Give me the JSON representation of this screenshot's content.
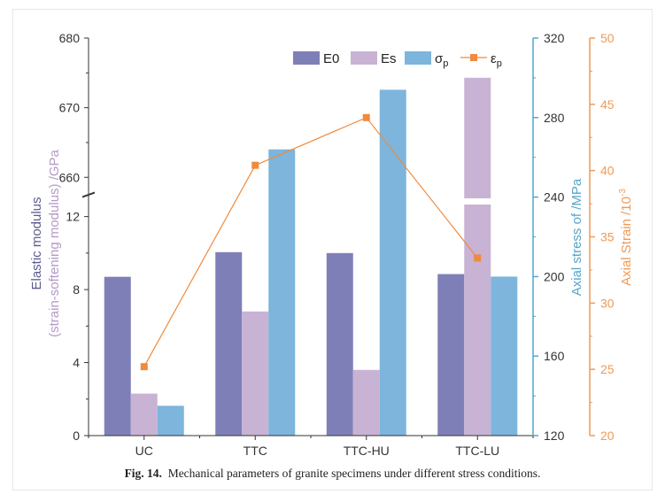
{
  "caption": {
    "label": "Fig. 14.",
    "text": "Mechanical parameters of granite specimens under different stress conditions."
  },
  "colors": {
    "E0": "#7f7fb8",
    "Es": "#c8b3d4",
    "sigma": "#7db5dc",
    "eps": "#f08a3c",
    "left_axis": "#5b5b8f",
    "left_axis_sub": "#b39ac7",
    "mid_axis": "#54a6cc",
    "right_axis": "#f09a55",
    "axis_dark": "#333333"
  },
  "chart_data": {
    "type": "bar",
    "categories": [
      "UC",
      "TTC",
      "TTC-HU",
      "TTC-LU"
    ],
    "series": [
      {
        "name": "E0",
        "axis": "left",
        "values": [
          8.7,
          10.05,
          10.0,
          8.85
        ]
      },
      {
        "name": "Es",
        "axis": "left",
        "values": [
          2.3,
          6.8,
          3.6,
          674.3
        ]
      },
      {
        "name": "σp",
        "axis": "middle",
        "values": [
          135,
          264,
          294,
          200
        ]
      },
      {
        "name": "εp",
        "axis": "right",
        "type": "line",
        "values": [
          25.2,
          40.4,
          44.0,
          33.4
        ]
      }
    ],
    "axes": {
      "left": {
        "label_line1": "Elastic modulus",
        "label_line2": "(strain-softening modulus) /GPa",
        "lower_range": [
          0,
          13
        ],
        "lower_ticks": [
          "0",
          "4",
          "8",
          "12"
        ],
        "upper_range": [
          658,
          680
        ],
        "upper_ticks": [
          "660",
          "670",
          "680"
        ]
      },
      "middle": {
        "label": "Axial stress of /MPa",
        "range": [
          120,
          320
        ],
        "ticks": [
          "120",
          "160",
          "200",
          "240",
          "280",
          "320"
        ]
      },
      "right": {
        "label": "Axial Strain /10",
        "label_exp": "-3",
        "range": [
          20,
          50
        ],
        "ticks": [
          "20",
          "25",
          "30",
          "35",
          "40",
          "45",
          "50"
        ]
      }
    },
    "legend": {
      "position": "top-right",
      "items": [
        {
          "name": "E0",
          "text": "E0"
        },
        {
          "name": "Es",
          "text": "Es"
        },
        {
          "name": "sigma",
          "text": "σ",
          "sub": "p"
        },
        {
          "name": "eps",
          "text": "ε",
          "sub": "p"
        }
      ]
    }
  }
}
